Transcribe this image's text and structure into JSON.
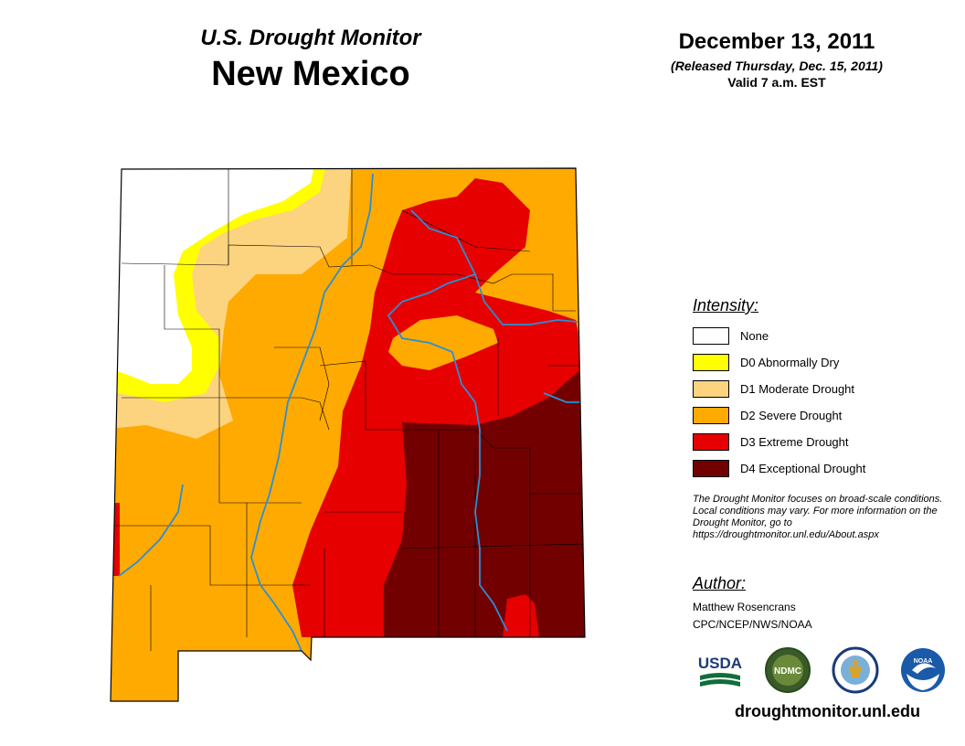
{
  "header": {
    "subtitle": "U.S. Drought Monitor",
    "state": "New Mexico",
    "date": "December 13, 2011",
    "released": "(Released Thursday, Dec. 15, 2011)",
    "valid": "Valid 7 a.m. EST"
  },
  "legend": {
    "heading": "Intensity:",
    "items": [
      {
        "label": "None",
        "color": "#ffffff"
      },
      {
        "label": "D0 Abnormally Dry",
        "color": "#ffff00"
      },
      {
        "label": "D1 Moderate Drought",
        "color": "#fcd37f"
      },
      {
        "label": "D2 Severe Drought",
        "color": "#ffaa00"
      },
      {
        "label": "D3 Extreme Drought",
        "color": "#e60000"
      },
      {
        "label": "D4 Exceptional Drought",
        "color": "#730000"
      }
    ]
  },
  "note": "The Drought Monitor focuses on broad-scale conditions. Local conditions may vary. For more information on the Drought Monitor, go to https://droughtmonitor.unl.edu/About.aspx",
  "author": {
    "heading": "Author:",
    "name": "Matthew Rosencrans",
    "org": "CPC/NCEP/NWS/NOAA"
  },
  "logos": {
    "usda": "USDA",
    "ndmc": "NDMC",
    "noaa": "NOAA"
  },
  "site_url": "droughtmonitor.unl.edu"
}
